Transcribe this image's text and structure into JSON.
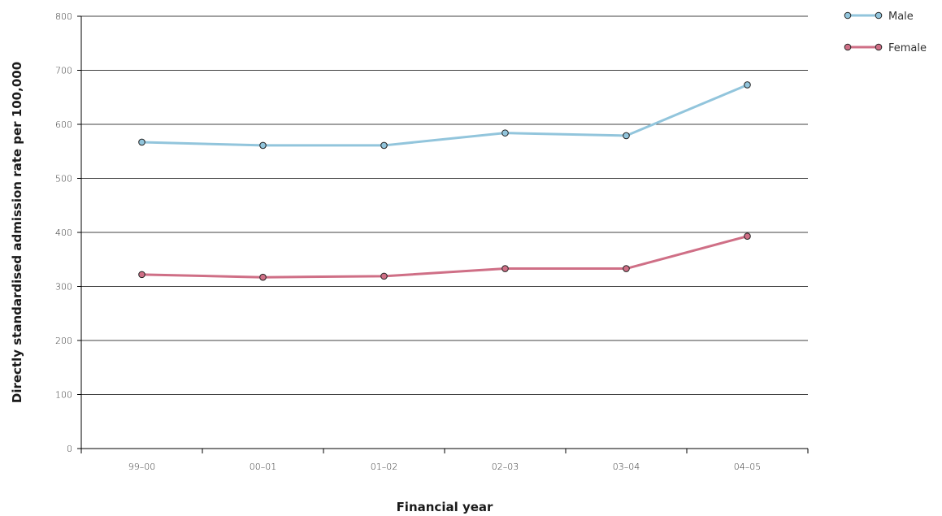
{
  "chart_data": {
    "type": "line",
    "title": "",
    "xlabel": "Financial year",
    "ylabel": "Directly standardised admission rate per 100,000",
    "categories": [
      "99–00",
      "00–01",
      "01–02",
      "02–03",
      "03–04",
      "04–05"
    ],
    "ylim": [
      0,
      800
    ],
    "yticks": [
      0,
      100,
      200,
      300,
      400,
      500,
      600,
      700,
      800
    ],
    "grid": "horizontal",
    "legend_position": "top-right",
    "series": [
      {
        "name": "Male",
        "color": "#92c5dc",
        "values": [
          567,
          561,
          561,
          584,
          579,
          673
        ]
      },
      {
        "name": "Female",
        "color": "#cf6f86",
        "values": [
          322,
          317,
          319,
          333,
          333,
          393
        ]
      }
    ]
  }
}
